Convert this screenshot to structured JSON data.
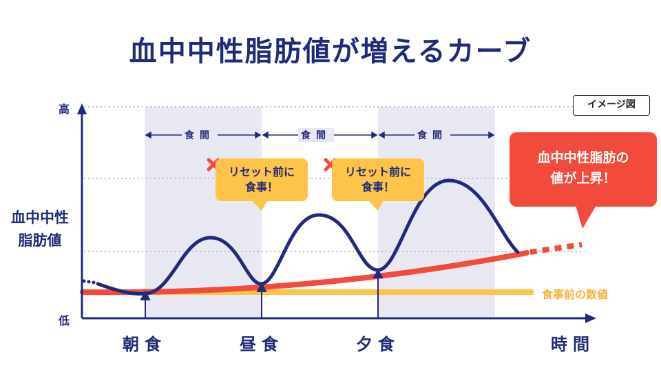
{
  "title": "血中中性脂肪値が増えるカーブ",
  "y_axis": {
    "label_line1": "血中中性",
    "label_line2": "脂肪値",
    "high": "高",
    "low": "低"
  },
  "x_axis": {
    "label": "時間"
  },
  "image_tag": "イメージ図",
  "meals": [
    {
      "label": "朝食"
    },
    {
      "label": "昼食"
    },
    {
      "label": "夕食"
    }
  ],
  "gaps": [
    {
      "label": "食間"
    },
    {
      "label": "食間"
    },
    {
      "label": "食間"
    }
  ],
  "callouts": [
    {
      "line1": "リセット前に",
      "line2": "食事！"
    },
    {
      "line1": "リセット前に",
      "line2": "食事！"
    }
  ],
  "rise_callout": {
    "line1": "血中中性脂肪の",
    "line2": "値が上昇！"
  },
  "baseline_label": "食事前の数値",
  "colors": {
    "navy": "#1f2a7a",
    "red": "#f24a3b",
    "yellow": "#fec44a",
    "band": "#e7e8f2"
  }
}
